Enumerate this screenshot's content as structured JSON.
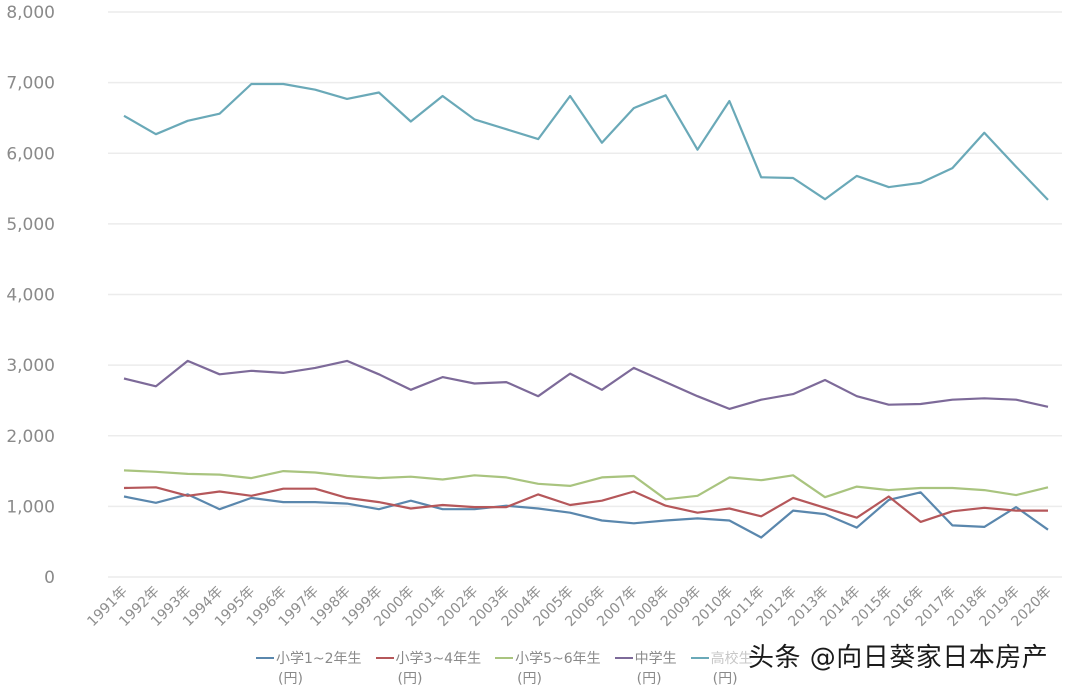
{
  "chart_data": {
    "type": "line",
    "title": "",
    "xlabel": "",
    "ylabel": "",
    "ylim": [
      0,
      8000
    ],
    "yticks": [
      0,
      1000,
      2000,
      3000,
      4000,
      5000,
      6000,
      7000,
      8000
    ],
    "ytick_labels": [
      "0",
      "1,000",
      "2,000",
      "3,000",
      "4,000",
      "5,000",
      "6,000",
      "7,000",
      "8,000"
    ],
    "grid": "horizontal",
    "legend_position": "bottom",
    "categories": [
      "1991年",
      "1992年",
      "1993年",
      "1994年",
      "1995年",
      "1996年",
      "1997年",
      "1998年",
      "1999年",
      "2000年",
      "2001年",
      "2002年",
      "2003年",
      "2004年",
      "2005年",
      "2006年",
      "2007年",
      "2008年",
      "2009年",
      "2010年",
      "2011年",
      "2012年",
      "2013年",
      "2014年",
      "2015年",
      "2016年",
      "2017年",
      "2018年",
      "2019年",
      "2020年"
    ],
    "series": [
      {
        "name": "小学1~2年生（円）",
        "color": "#5a87ad",
        "values": [
          1140,
          1050,
          1170,
          960,
          1120,
          1060,
          1060,
          1040,
          960,
          1080,
          960,
          960,
          1010,
          970,
          910,
          800,
          760,
          800,
          830,
          800,
          560,
          940,
          890,
          700,
          1090,
          1200,
          730,
          710,
          990,
          670
        ]
      },
      {
        "name": "小学3~4年生（円）",
        "color": "#b5575a",
        "values": [
          1260,
          1270,
          1150,
          1210,
          1150,
          1250,
          1250,
          1120,
          1060,
          970,
          1020,
          990,
          990,
          1170,
          1020,
          1080,
          1210,
          1010,
          910,
          970,
          860,
          1120,
          980,
          840,
          1140,
          780,
          930,
          980,
          940,
          940
        ]
      },
      {
        "name": "小学5~6年生（円）",
        "color": "#a9c47f",
        "values": [
          1510,
          1490,
          1460,
          1450,
          1400,
          1500,
          1480,
          1430,
          1400,
          1420,
          1380,
          1440,
          1410,
          1320,
          1290,
          1410,
          1430,
          1100,
          1150,
          1410,
          1370,
          1440,
          1130,
          1280,
          1230,
          1260,
          1260,
          1230,
          1160,
          1270
        ]
      },
      {
        "name": "中学生（円）",
        "color": "#7d6a99",
        "values": [
          2810,
          2700,
          3060,
          2870,
          2920,
          2890,
          2960,
          3060,
          2870,
          2650,
          2830,
          2740,
          2760,
          2560,
          2880,
          2650,
          2960,
          2760,
          2560,
          2380,
          2510,
          2590,
          2790,
          2560,
          2440,
          2450,
          2510,
          2530,
          2510,
          2410
        ]
      },
      {
        "name": "高校生（円）",
        "color": "#6aa9b8",
        "values": [
          6530,
          6270,
          6460,
          6560,
          6980,
          6980,
          6900,
          6770,
          6860,
          6450,
          6810,
          6480,
          6340,
          6200,
          6810,
          6150,
          6640,
          6820,
          6050,
          6740,
          5660,
          5650,
          5350,
          5680,
          5520,
          5580,
          5790,
          6290,
          5810,
          5340
        ]
      }
    ]
  },
  "legend": {
    "items": [
      {
        "label": "小学1~2年生",
        "unit": "(円)",
        "color": "#5a87ad"
      },
      {
        "label": "小学3~4年生",
        "unit": "(円)",
        "color": "#b5575a"
      },
      {
        "label": "小学5~6年生",
        "unit": "(円)",
        "color": "#a9c47f"
      },
      {
        "label": "中学生",
        "unit": "(円)",
        "color": "#7d6a99"
      },
      {
        "label": "高校生",
        "unit": "(円)",
        "color": "#6aa9b8"
      }
    ]
  },
  "watermark": "头条 @向日葵家日本房产",
  "colors": {
    "grid": "#ececec",
    "tick_text": "#8a8a8a",
    "background": "#ffffff"
  }
}
